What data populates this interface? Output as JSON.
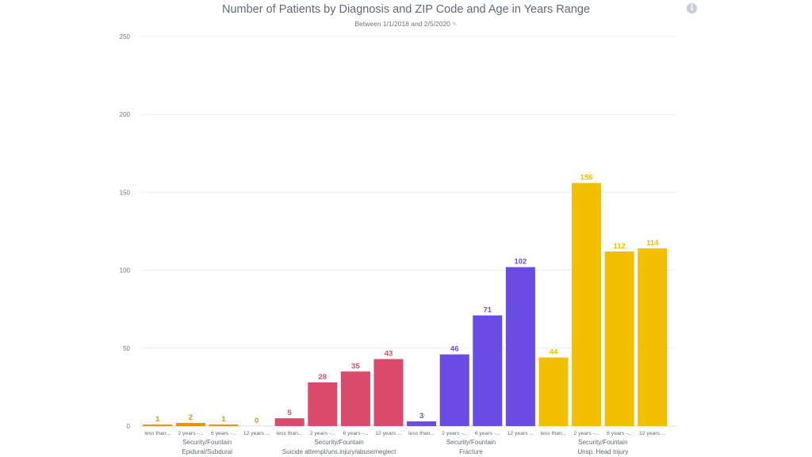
{
  "header": {
    "title": "Number of Patients by Diagnosis and ZIP Code and Age in Years Range",
    "subtitle": "Between 1/1/2018 and 2/5/2020",
    "edit_icon": "pencil-icon",
    "info_icon": "info-icon",
    "info_glyph": "i"
  },
  "chart_data": {
    "type": "bar",
    "title": "Number of Patients by Diagnosis and ZIP Code and Age in Years Range",
    "subtitle": "Between 1/1/2018 and 2/5/2020",
    "ylim": [
      0,
      250
    ],
    "yticks": [
      0,
      50,
      100,
      150,
      200,
      250
    ],
    "grid": true,
    "groups": [
      {
        "zip": "Security/Fountain",
        "diagnosis": "Epidural/Subdural",
        "color": "#f0900a",
        "categories": [
          "less than...",
          "2 years -...",
          "6 years -...",
          "12 years ..."
        ],
        "values": [
          1,
          2,
          1,
          0
        ]
      },
      {
        "zip": "Security/Fountain",
        "diagnosis": "Suicide attempt/uns.injury/abuse/neglect",
        "color": "#d94a6b",
        "categories": [
          "less than...",
          "2 years -...",
          "6 years -...",
          "12 years ..."
        ],
        "values": [
          5,
          28,
          35,
          43
        ]
      },
      {
        "zip": "Security/Fountain",
        "diagnosis": "Fracture",
        "color": "#6a4be3",
        "categories": [
          "less than...",
          "2 years -...",
          "6 years -...",
          "12 years ..."
        ],
        "values": [
          3,
          46,
          71,
          102
        ]
      },
      {
        "zip": "Security/Fountain",
        "diagnosis": "Unsp. Head Injury",
        "color": "#f2c000",
        "categories": [
          "less than...",
          "2 years -...",
          "6 years -...",
          "12 years ..."
        ],
        "values": [
          44,
          156,
          112,
          114
        ]
      }
    ]
  }
}
